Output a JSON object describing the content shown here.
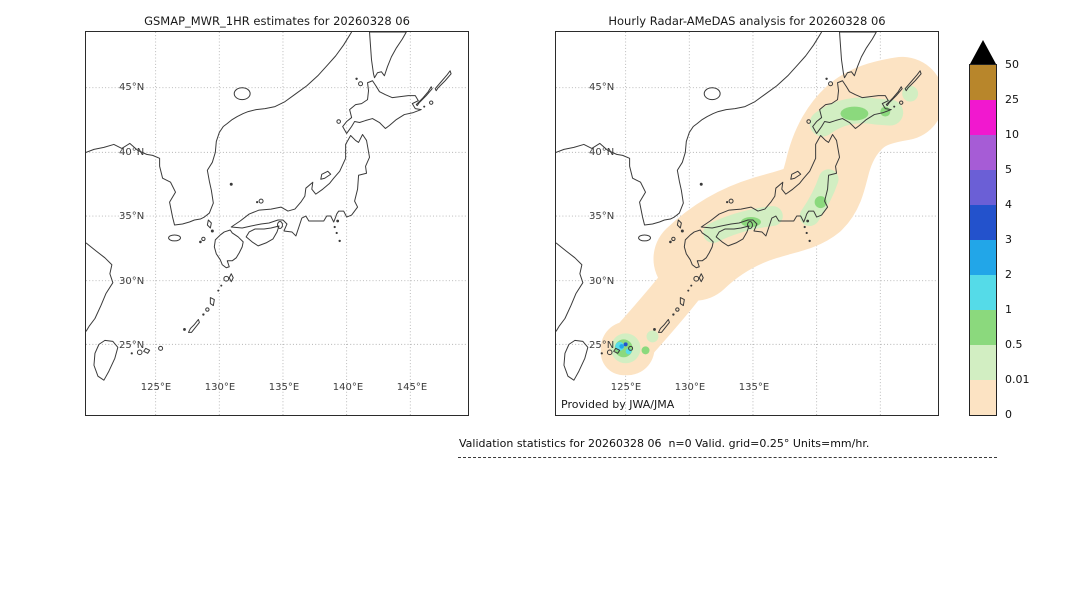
{
  "figure": {
    "left_panel": {
      "title": "GSMAP_MWR_1HR estimates for 20260328 06",
      "lat_labels": [
        "45°N",
        "40°N",
        "35°N",
        "30°N",
        "25°N"
      ],
      "lon_labels": [
        "125°E",
        "130°E",
        "135°E",
        "140°E",
        "145°E"
      ]
    },
    "right_panel": {
      "title": "Hourly Radar-AMeDAS analysis for 20260328 06",
      "lat_labels": [
        "45°N",
        "40°N",
        "35°N",
        "30°N",
        "25°N"
      ],
      "lon_labels": [
        "125°E",
        "130°E",
        "135°E"
      ],
      "credit": "Provided by JWA/JMA"
    },
    "colorbar": {
      "tick_labels": [
        "50",
        "25",
        "10",
        "5",
        "4",
        "3",
        "2",
        "1",
        "0.5",
        "0.01",
        "0"
      ],
      "colors_top_to_bottom": [
        "#b8862b",
        "#f118cf",
        "#a65cd6",
        "#6b5fd6",
        "#2352cc",
        "#22a6e8",
        "#55dbe8",
        "#8bd97d",
        "#d2eec2",
        "#fce3c3"
      ],
      "overflow_triangle_color": "#000000",
      "units": "mm/hr"
    },
    "footer_text": "Validation statistics for 20260328 06  n=0 Valid. grid=0.25° Units=mm/hr."
  },
  "chart_data": [
    {
      "type": "heatmap",
      "title": "GSMAP_MWR_1HR estimates for 20260328 06",
      "geography": "Japan and surrounding seas, equirectangular lat/lon map with coastlines",
      "x_ticks": [
        "125°E",
        "130°E",
        "135°E",
        "140°E",
        "145°E"
      ],
      "y_ticks": [
        "45°N",
        "40°N",
        "35°N",
        "30°N",
        "25°N"
      ],
      "lon_range": [
        119.5,
        149.5
      ],
      "lat_range": [
        19.5,
        49.3
      ],
      "grid": true,
      "units": "mm/hr",
      "data_note": "no precipitation plotted (empty field, n=0 matchups)"
    },
    {
      "type": "heatmap",
      "title": "Hourly Radar-AMeDAS analysis for 20260328 06",
      "geography": "Japan and surrounding seas, equirectangular lat/lon map with coastlines",
      "x_ticks": [
        "125°E",
        "130°E",
        "135°E"
      ],
      "y_ticks": [
        "45°N",
        "40°N",
        "35°N",
        "30°N",
        "25°N"
      ],
      "lon_range": [
        119.5,
        149.5
      ],
      "lat_range": [
        19.5,
        49.3
      ],
      "grid": true,
      "units": "mm/hr",
      "colorbar_levels_mm_hr": [
        0,
        0.01,
        0.5,
        1,
        2,
        3,
        4,
        5,
        10,
        25,
        50
      ],
      "regions": [
        {
          "area": "broad band along the archipelago from the Ryukyu Islands through Kyushu, Honshu and Hokkaido",
          "value_mm_hr": "0 to 0.01"
        },
        {
          "area": "central Hokkaido, northern Kanto, Inland Sea coast of western Honshu",
          "value_mm_hr": "0.01 to 1"
        },
        {
          "area": "Sakishima Islands near 24.5N 124E",
          "value_mm_hr": "cells of 1 to 5 (cyan/blue) inside a green 0.5 to 1 patch"
        }
      ]
    }
  ]
}
